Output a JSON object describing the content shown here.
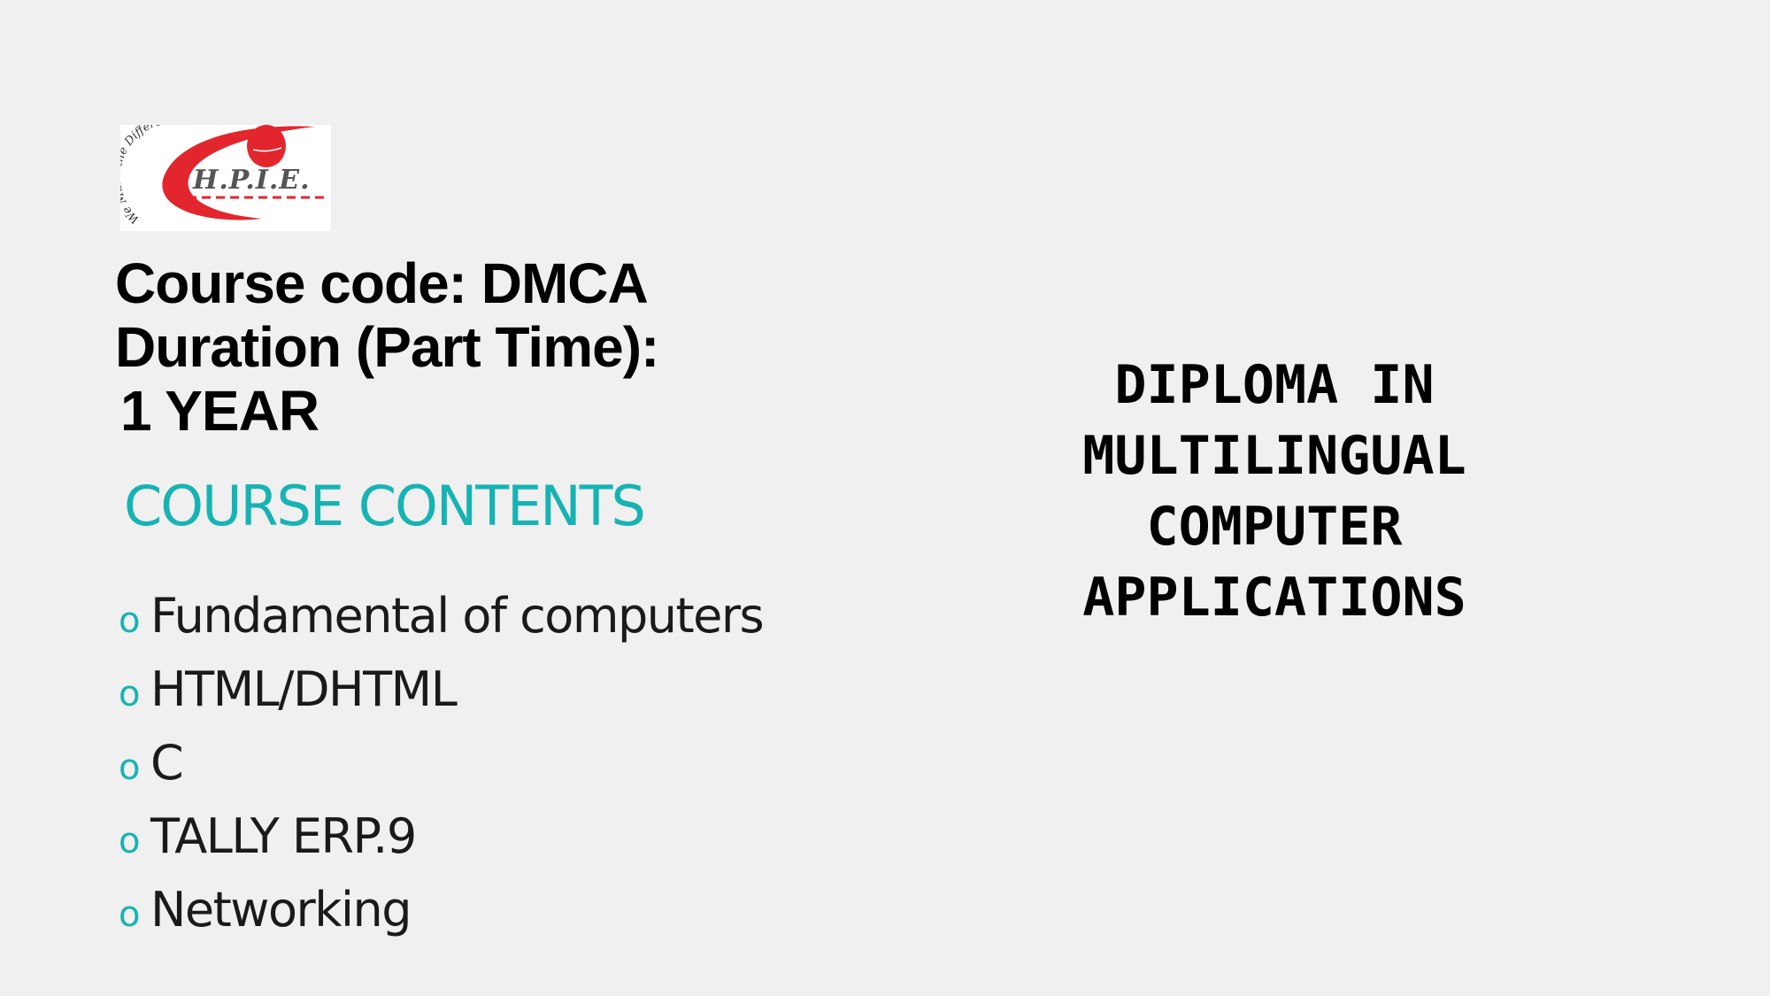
{
  "logo": {
    "alt_text": "We Make the Difference H.P.I.E.",
    "brand_color": "#e3262d"
  },
  "course": {
    "code_line": "Course code: DMCA",
    "duration_line": "Duration (Part Time):",
    "duration_value": "1 YEAR"
  },
  "contents": {
    "heading": "COURSE CONTENTS",
    "bullet": "o",
    "items": [
      "Fundamental of computers",
      "HTML/DHTML",
      "C",
      "TALLY ERP.9",
      "Networking"
    ]
  },
  "diploma": {
    "lines": [
      "DIPLOMA IN",
      "MULTILINGUAL",
      "COMPUTER",
      "APPLICATIONS"
    ]
  },
  "colors": {
    "background": "#f0f0f0",
    "accent": "#17b3b3",
    "text": "#000000"
  }
}
